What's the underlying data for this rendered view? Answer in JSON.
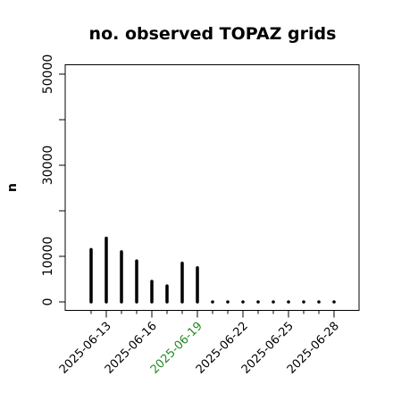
{
  "chart_data": {
    "type": "bar",
    "title": "no. observed TOPAZ grids",
    "xlabel": "",
    "ylabel": "n",
    "x": [
      "2025-06-12",
      "2025-06-13",
      "2025-06-14",
      "2025-06-15",
      "2025-06-16",
      "2025-06-17",
      "2025-06-18",
      "2025-06-19",
      "2025-06-20",
      "2025-06-21",
      "2025-06-22",
      "2025-06-23",
      "2025-06-24",
      "2025-06-25",
      "2025-06-26",
      "2025-06-27",
      "2025-06-28"
    ],
    "values": [
      11500,
      14000,
      11000,
      9000,
      4500,
      3500,
      8500,
      7500,
      0,
      0,
      0,
      0,
      0,
      0,
      0,
      0,
      0
    ],
    "xticks": [
      "2025-06-13",
      "2025-06-16",
      "2025-06-19",
      "2025-06-22",
      "2025-06-25",
      "2025-06-28"
    ],
    "highlight_tick": "2025-06-19",
    "yticks": [
      "0",
      "10000",
      "30000",
      "50000"
    ],
    "ylim": [
      -1000,
      52000
    ],
    "grid": false,
    "colors": {
      "bar": "#000000",
      "highlight_tick": "#228b22",
      "text": "#000000"
    }
  }
}
